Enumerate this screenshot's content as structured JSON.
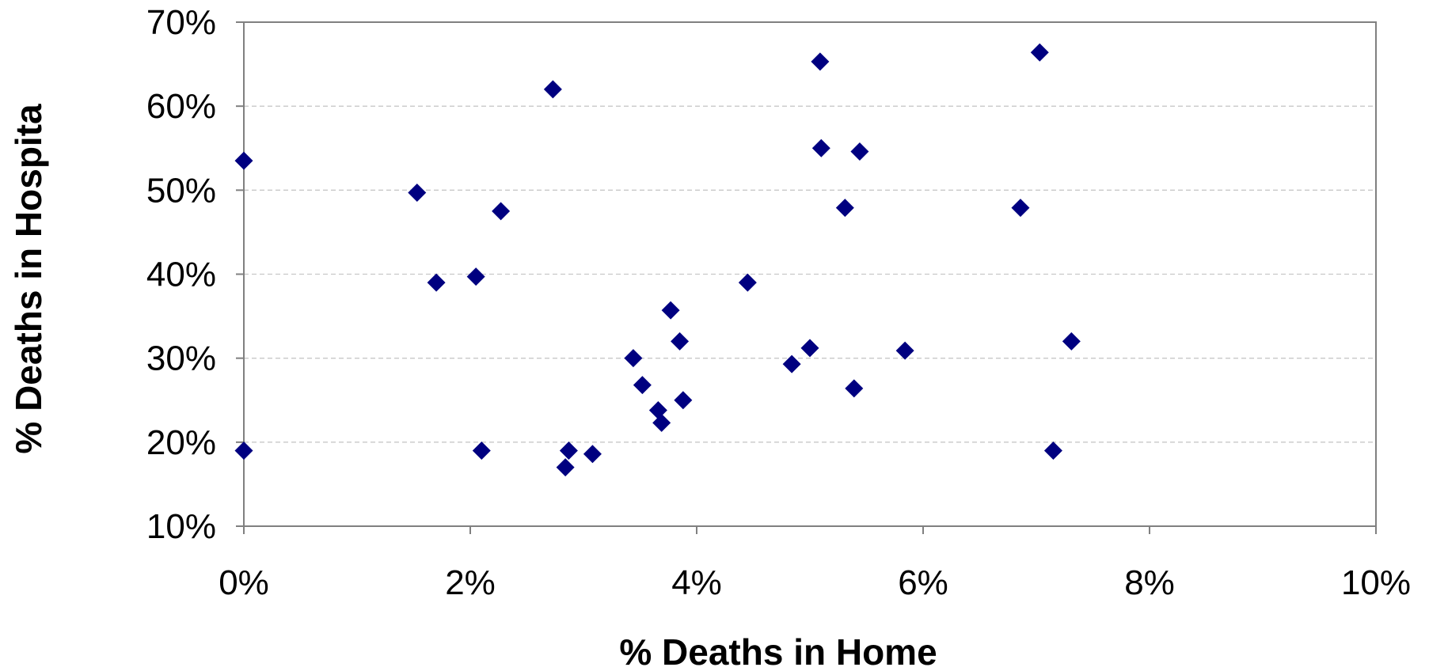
{
  "chart_data": {
    "type": "scatter",
    "xlabel": "% Deaths in Home",
    "ylabel": "% Deaths in Hospita",
    "xlim": [
      0,
      10
    ],
    "ylim": [
      10,
      70
    ],
    "x_ticks": [
      0,
      2,
      4,
      6,
      8,
      10
    ],
    "y_ticks": [
      10,
      20,
      30,
      40,
      50,
      60,
      70
    ],
    "x_tick_labels": [
      "0%",
      "2%",
      "4%",
      "6%",
      "8%",
      "10%"
    ],
    "y_tick_labels": [
      "10%",
      "20%",
      "30%",
      "40%",
      "50%",
      "60%",
      "70%"
    ],
    "grid": "horizontal-dashed",
    "legend": "none",
    "marker": "diamond",
    "marker_color": "#000080",
    "series": [
      {
        "points": [
          {
            "x": 0.0,
            "y": 53.5
          },
          {
            "x": 0.0,
            "y": 19.0
          },
          {
            "x": 1.53,
            "y": 49.7
          },
          {
            "x": 1.7,
            "y": 39.0
          },
          {
            "x": 2.05,
            "y": 39.7
          },
          {
            "x": 2.1,
            "y": 19.0
          },
          {
            "x": 2.27,
            "y": 47.5
          },
          {
            "x": 2.73,
            "y": 62.0
          },
          {
            "x": 2.84,
            "y": 17.0
          },
          {
            "x": 2.87,
            "y": 19.0
          },
          {
            "x": 3.08,
            "y": 18.6
          },
          {
            "x": 3.44,
            "y": 30.0
          },
          {
            "x": 3.52,
            "y": 26.8
          },
          {
            "x": 3.66,
            "y": 23.8
          },
          {
            "x": 3.69,
            "y": 22.3
          },
          {
            "x": 3.77,
            "y": 35.7
          },
          {
            "x": 3.85,
            "y": 32.0
          },
          {
            "x": 3.88,
            "y": 25.0
          },
          {
            "x": 4.45,
            "y": 39.0
          },
          {
            "x": 4.84,
            "y": 29.3
          },
          {
            "x": 5.0,
            "y": 31.2
          },
          {
            "x": 5.09,
            "y": 65.3
          },
          {
            "x": 5.1,
            "y": 55.0
          },
          {
            "x": 5.31,
            "y": 47.9
          },
          {
            "x": 5.39,
            "y": 26.4
          },
          {
            "x": 5.44,
            "y": 54.6
          },
          {
            "x": 5.84,
            "y": 30.9
          },
          {
            "x": 6.86,
            "y": 47.9
          },
          {
            "x": 7.03,
            "y": 66.4
          },
          {
            "x": 7.15,
            "y": 19.0
          },
          {
            "x": 7.31,
            "y": 32.0
          }
        ]
      }
    ]
  }
}
